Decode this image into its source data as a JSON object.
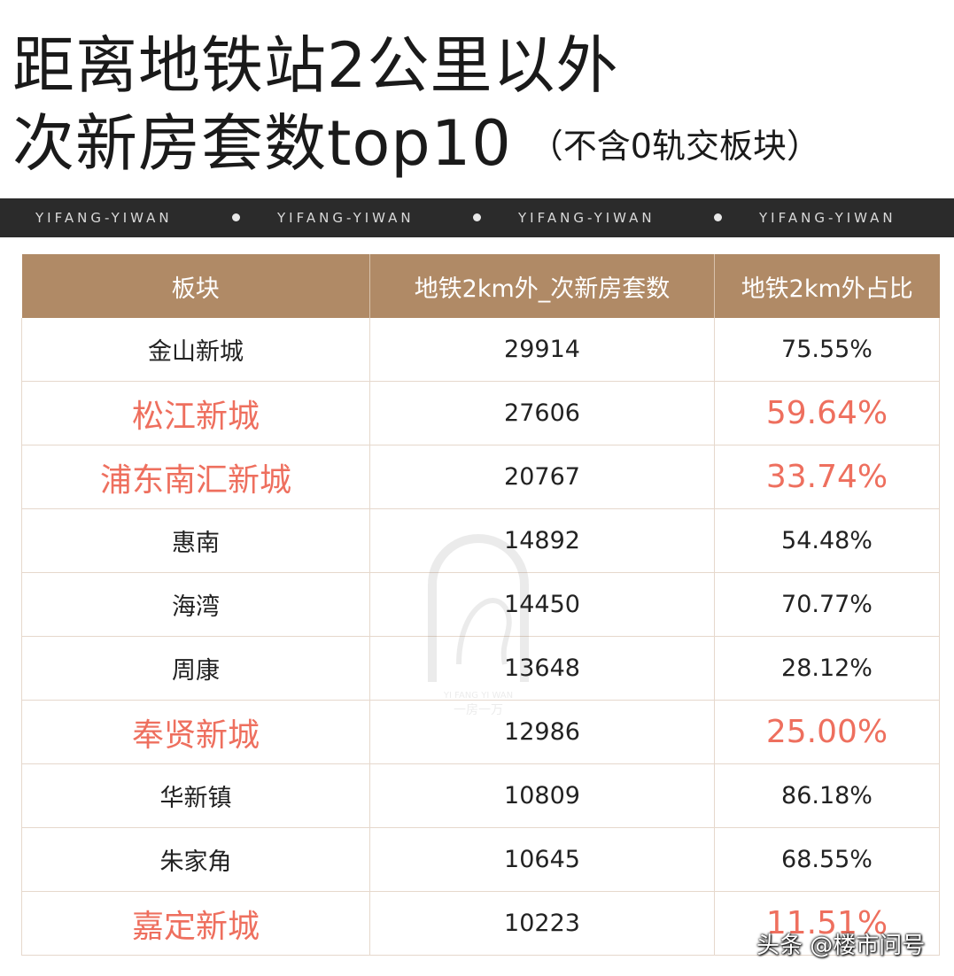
{
  "title": {
    "line1": "距离地铁站2公里以外",
    "line2": "次新房套数top10",
    "note": "（不含0轨交板块）"
  },
  "brand_bar": {
    "items": [
      "YIFANG-YIWAN",
      "YIFANG-YIWAN",
      "YIFANG-YIWAN",
      "YIFANG-YIWAN"
    ]
  },
  "watermark": {
    "en": "YI FANG YI WAN",
    "cn": "一房一万"
  },
  "source_mark": "头条 @楼市问号",
  "colors": {
    "header_bg": "#b08a66",
    "highlight": "#ee6f5e",
    "brand_bar_bg": "#2b2b2b"
  },
  "chart_data": {
    "type": "table",
    "columns": [
      "板块",
      "地铁2km外_次新房套数",
      "地铁2km外占比"
    ],
    "rows": [
      {
        "block": "金山新城",
        "count": "29914",
        "ratio": "75.55%",
        "highlight": false
      },
      {
        "block": "松江新城",
        "count": "27606",
        "ratio": "59.64%",
        "highlight": true
      },
      {
        "block": "浦东南汇新城",
        "count": "20767",
        "ratio": "33.74%",
        "highlight": true
      },
      {
        "block": "惠南",
        "count": "14892",
        "ratio": "54.48%",
        "highlight": false
      },
      {
        "block": "海湾",
        "count": "14450",
        "ratio": "70.77%",
        "highlight": false
      },
      {
        "block": "周康",
        "count": "13648",
        "ratio": "28.12%",
        "highlight": false
      },
      {
        "block": "奉贤新城",
        "count": "12986",
        "ratio": "25.00%",
        "highlight": true
      },
      {
        "block": "华新镇",
        "count": "10809",
        "ratio": "86.18%",
        "highlight": false
      },
      {
        "block": "朱家角",
        "count": "10645",
        "ratio": "68.55%",
        "highlight": false
      },
      {
        "block": "嘉定新城",
        "count": "10223",
        "ratio": "11.51%",
        "highlight": true
      }
    ]
  }
}
